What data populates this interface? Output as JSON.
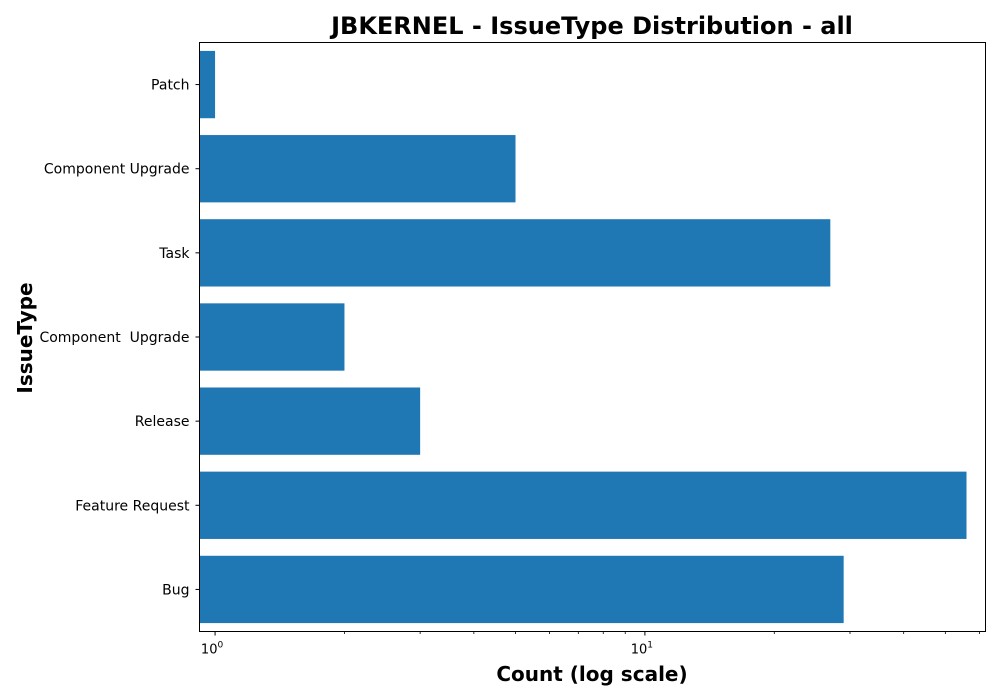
{
  "chart_data": {
    "type": "bar",
    "orientation": "horizontal",
    "title": "JBKERNEL - IssueType Distribution - all",
    "xlabel": "Count (log scale)",
    "ylabel": "IssueType",
    "x_scale": "log",
    "xlim": [
      0.92,
      62
    ],
    "x_ticks": [
      {
        "value": 1,
        "base": "10",
        "exp": "0"
      },
      {
        "value": 10,
        "base": "10",
        "exp": "1"
      }
    ],
    "bar_color": "#1f77b4",
    "grid": false,
    "categories": [
      "Patch",
      "Component Upgrade",
      "Task",
      "Component  Upgrade",
      "Release",
      "Feature Request",
      "Bug"
    ],
    "values": [
      1,
      5,
      27,
      2,
      3,
      56,
      29
    ]
  }
}
